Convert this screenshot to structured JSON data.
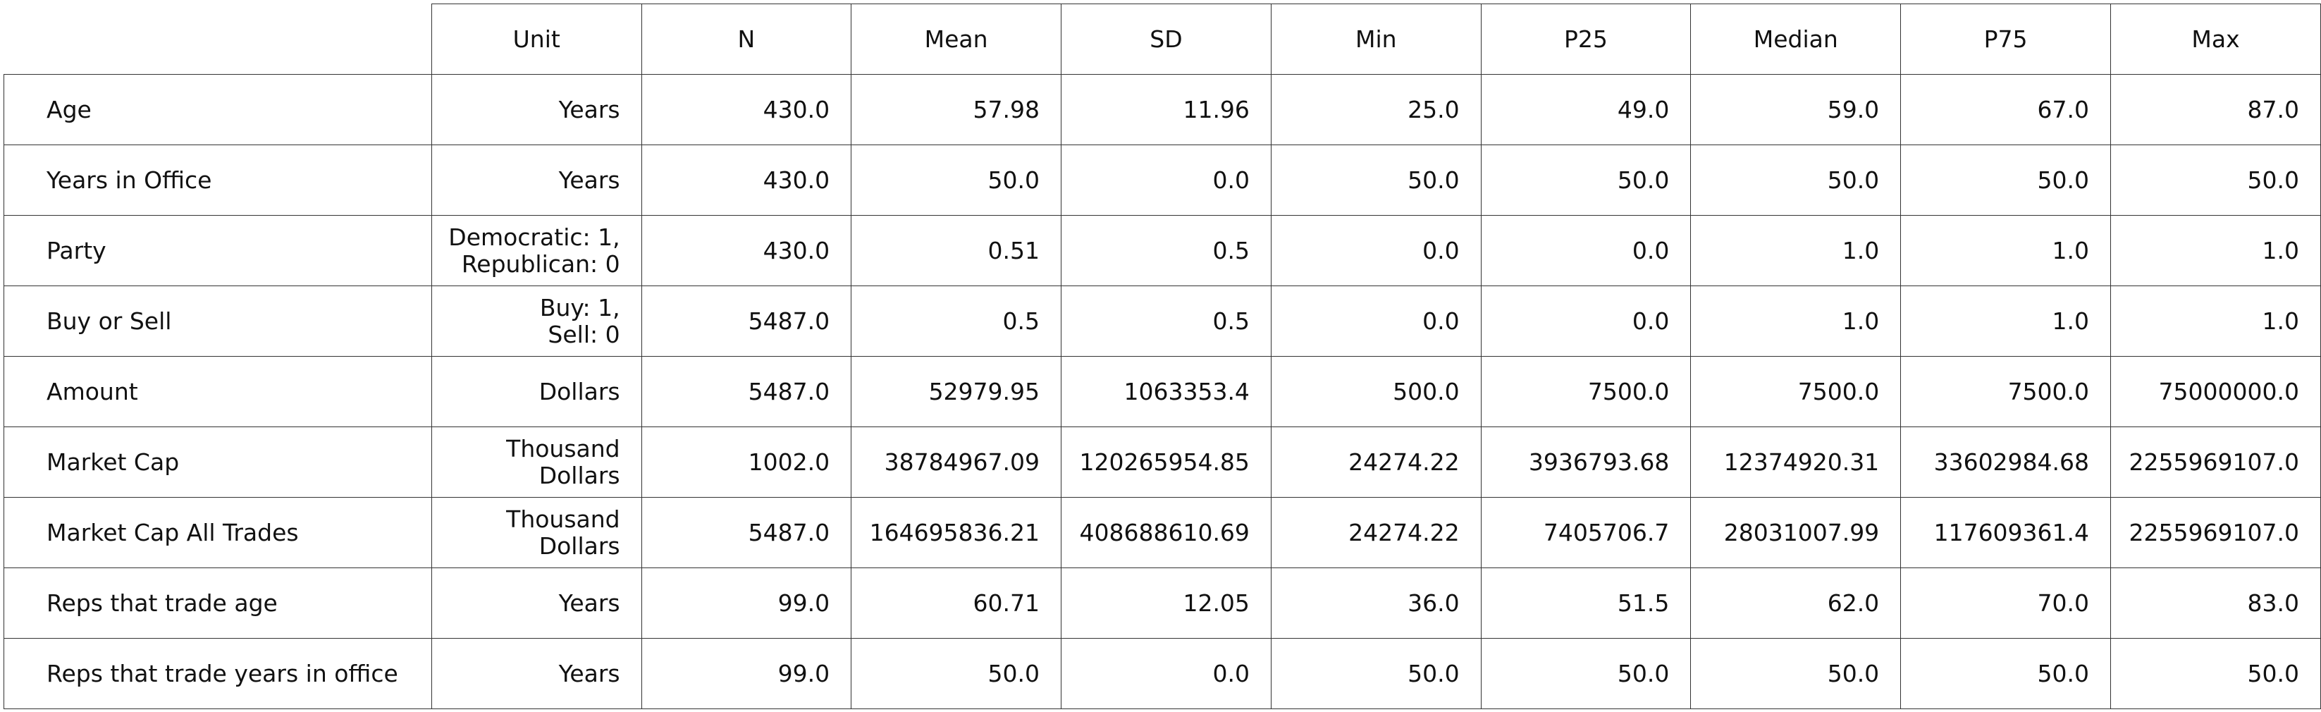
{
  "columns": [
    "Unit",
    "N",
    "Mean",
    "SD",
    "Min",
    "P25",
    "Median",
    "P75",
    "Max"
  ],
  "rows": [
    {
      "label": "Age",
      "unit": "Years",
      "n": "430.0",
      "mean": "57.98",
      "sd": "11.96",
      "min": "25.0",
      "p25": "49.0",
      "median": "59.0",
      "p75": "67.0",
      "max": "87.0"
    },
    {
      "label": "Years in Office",
      "unit": "Years",
      "n": "430.0",
      "mean": "50.0",
      "sd": "0.0",
      "min": "50.0",
      "p25": "50.0",
      "median": "50.0",
      "p75": "50.0",
      "max": "50.0"
    },
    {
      "label": "Party",
      "unit": "Democratic: 1,\nRepublican: 0",
      "n": "430.0",
      "mean": "0.51",
      "sd": "0.5",
      "min": "0.0",
      "p25": "0.0",
      "median": "1.0",
      "p75": "1.0",
      "max": "1.0"
    },
    {
      "label": "Buy or Sell",
      "unit": "Buy: 1,\nSell: 0",
      "n": "5487.0",
      "mean": "0.5",
      "sd": "0.5",
      "min": "0.0",
      "p25": "0.0",
      "median": "1.0",
      "p75": "1.0",
      "max": "1.0"
    },
    {
      "label": "Amount",
      "unit": "Dollars",
      "n": "5487.0",
      "mean": "52979.95",
      "sd": "1063353.4",
      "min": "500.0",
      "p25": "7500.0",
      "median": "7500.0",
      "p75": "7500.0",
      "max": "75000000.0"
    },
    {
      "label": "Market Cap",
      "unit": "Thousand Dollars",
      "n": "1002.0",
      "mean": "38784967.09",
      "sd": "120265954.85",
      "min": "24274.22",
      "p25": "3936793.68",
      "median": "12374920.31",
      "p75": "33602984.68",
      "max": "2255969107.0"
    },
    {
      "label": "Market Cap All Trades",
      "unit": "Thousand Dollars",
      "n": "5487.0",
      "mean": "164695836.21",
      "sd": "408688610.69",
      "min": "24274.22",
      "p25": "7405706.7",
      "median": "28031007.99",
      "p75": "117609361.4",
      "max": "2255969107.0"
    },
    {
      "label": "Reps that trade age",
      "unit": "Years",
      "n": "99.0",
      "mean": "60.71",
      "sd": "12.05",
      "min": "36.0",
      "p25": "51.5",
      "median": "62.0",
      "p75": "70.0",
      "max": "83.0"
    },
    {
      "label": "Reps that trade years in office",
      "unit": "Years",
      "n": "99.0",
      "mean": "50.0",
      "sd": "0.0",
      "min": "50.0",
      "p25": "50.0",
      "median": "50.0",
      "p75": "50.0",
      "max": "50.0"
    }
  ]
}
